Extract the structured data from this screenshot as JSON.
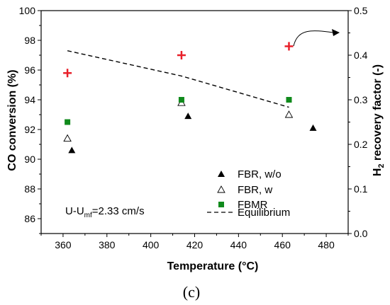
{
  "chart_data": {
    "type": "scatter",
    "x_axis": {
      "label": "Temperature (°C)",
      "range": [
        350,
        490
      ],
      "ticks": [
        360,
        380,
        400,
        420,
        440,
        460,
        480
      ]
    },
    "y_left": {
      "label": "CO conversion (%)",
      "range": [
        85,
        100
      ],
      "ticks": [
        86,
        88,
        90,
        92,
        94,
        96,
        98,
        100
      ]
    },
    "y_right": {
      "label_main": "H",
      "label_sub": "2",
      "label_rest": " recovery factor (-)",
      "range": [
        0,
        0.5
      ],
      "ticks": [
        "0.0",
        "0.1",
        "0.2",
        "0.3",
        "0.4",
        "0.5"
      ]
    },
    "series": [
      {
        "name": "FBR, w/o",
        "axis": "left",
        "marker": "filled-triangle",
        "color": "#000000",
        "points": [
          [
            364,
            90.6
          ],
          [
            417,
            92.9
          ],
          [
            474,
            92.1
          ]
        ]
      },
      {
        "name": "FBR, w",
        "axis": "left",
        "marker": "open-triangle",
        "color": "#000000",
        "points": [
          [
            362,
            91.4
          ],
          [
            414,
            93.8
          ],
          [
            463,
            93.0
          ]
        ]
      },
      {
        "name": "FBMR",
        "axis": "left",
        "marker": "filled-square",
        "color": "#108a1c",
        "points": [
          [
            362,
            92.5
          ],
          [
            414,
            94.0
          ],
          [
            463,
            94.0
          ]
        ]
      },
      {
        "name": "Equilibrium",
        "axis": "left",
        "marker": "dashed-line",
        "color": "#000000",
        "points": [
          [
            362,
            97.3
          ],
          [
            414,
            95.6
          ],
          [
            463,
            93.5
          ]
        ]
      },
      {
        "name": "",
        "axis": "right",
        "marker": "red-plus",
        "color": "#e8202a",
        "points": [
          [
            362,
            0.36
          ],
          [
            414,
            0.4
          ],
          [
            463,
            0.42
          ]
        ]
      }
    ],
    "annotation_prefix": "U-U",
    "annotation_sub": "mf",
    "annotation_suffix": "=2.33 cm/s",
    "caption": "(c)",
    "legend_position": "bottom-right"
  }
}
